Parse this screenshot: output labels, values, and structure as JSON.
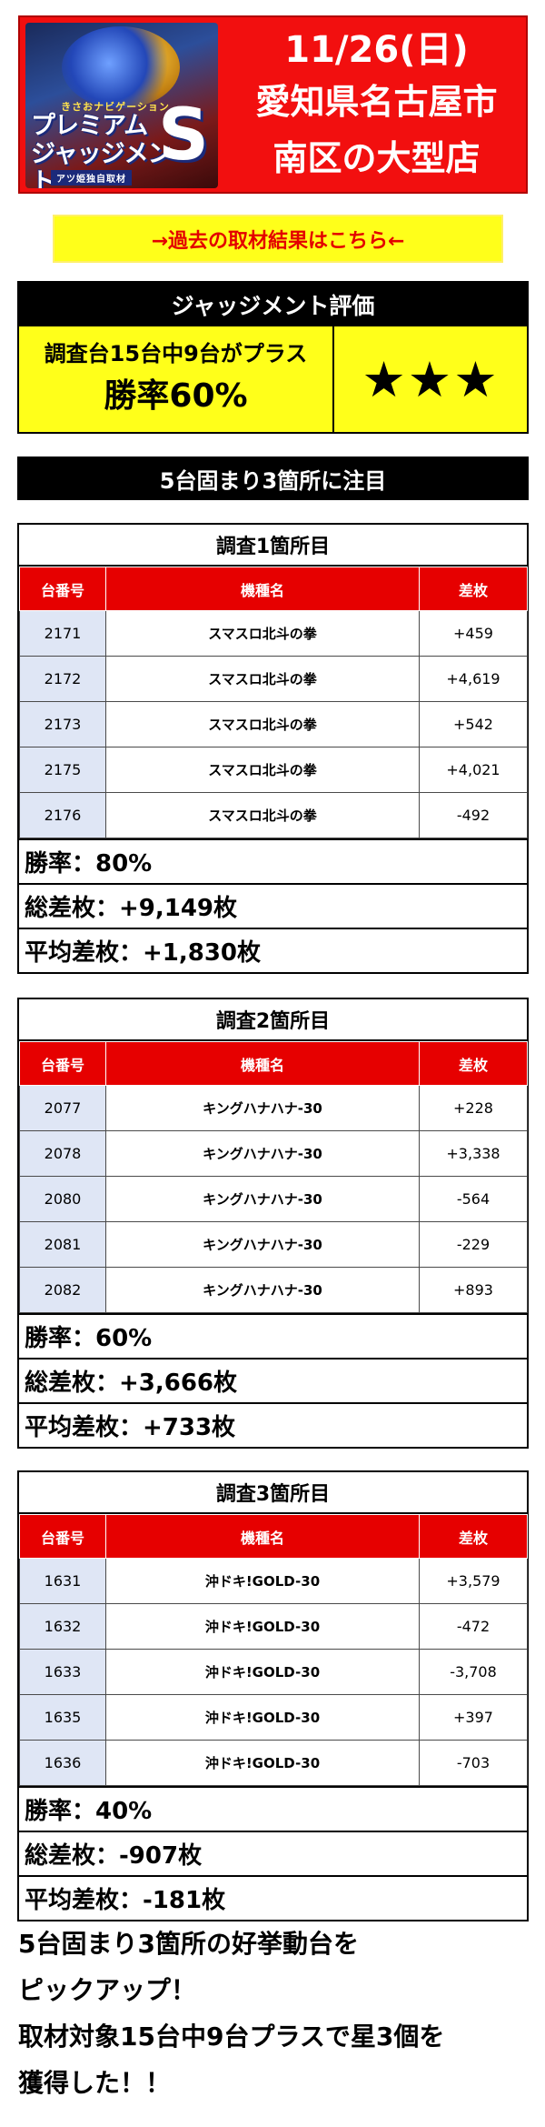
{
  "header": {
    "logo": {
      "sub": "きさおナビゲーション",
      "name_line1": "プレミアム",
      "name_line2": "ジャッジメント",
      "big_letter": "S",
      "tag": "アツ姫独自取材"
    },
    "date": "11/26(日)",
    "location_line1": "愛知県名古屋市",
    "location_line2": "南区の大型店"
  },
  "link_bar": {
    "label": "→過去の取材結果はこちら←"
  },
  "judgement": {
    "title": "ジャッジメント評価",
    "summary_line": "調査台15台中9台がプラス",
    "win_rate": "勝率60%",
    "stars": "★★★"
  },
  "focus_title": "5台固まり3箇所に注目",
  "columns": {
    "machine_no": "台番号",
    "model": "機種名",
    "diff": "差枚"
  },
  "surveys": [
    {
      "title": "調査1箇所目",
      "rows": [
        {
          "no": "2171",
          "model": "スマスロ北斗の拳",
          "diff": "+459"
        },
        {
          "no": "2172",
          "model": "スマスロ北斗の拳",
          "diff": "+4,619"
        },
        {
          "no": "2173",
          "model": "スマスロ北斗の拳",
          "diff": "+542"
        },
        {
          "no": "2175",
          "model": "スマスロ北斗の拳",
          "diff": "+4,021"
        },
        {
          "no": "2176",
          "model": "スマスロ北斗の拳",
          "diff": "-492"
        }
      ],
      "win_rate": "勝率：80%",
      "total": "総差枚：+9,149枚",
      "average": "平均差枚：+1,830枚"
    },
    {
      "title": "調査2箇所目",
      "rows": [
        {
          "no": "2077",
          "model": "キングハナハナ-30",
          "diff": "+228"
        },
        {
          "no": "2078",
          "model": "キングハナハナ-30",
          "diff": "+3,338"
        },
        {
          "no": "2080",
          "model": "キングハナハナ-30",
          "diff": "-564"
        },
        {
          "no": "2081",
          "model": "キングハナハナ-30",
          "diff": "-229"
        },
        {
          "no": "2082",
          "model": "キングハナハナ-30",
          "diff": "+893"
        }
      ],
      "win_rate": "勝率：60%",
      "total": "総差枚：+3,666枚",
      "average": "平均差枚：+733枚"
    },
    {
      "title": "調査3箇所目",
      "rows": [
        {
          "no": "1631",
          "model": "沖ドキ!GOLD-30",
          "diff": "+3,579"
        },
        {
          "no": "1632",
          "model": "沖ドキ!GOLD-30",
          "diff": "-472"
        },
        {
          "no": "1633",
          "model": "沖ドキ!GOLD-30",
          "diff": "-3,708"
        },
        {
          "no": "1635",
          "model": "沖ドキ!GOLD-30",
          "diff": "+397"
        },
        {
          "no": "1636",
          "model": "沖ドキ!GOLD-30",
          "diff": "-703"
        }
      ],
      "win_rate": "勝率：40%",
      "total": "総差枚：-907枚",
      "average": "平均差枚：-181枚"
    }
  ],
  "summary": [
    "5台固まり3箇所の好挙動台を",
    "ピックアップ！",
    "取材対象15台中9台プラスで星3個を",
    "獲得した！！"
  ]
}
